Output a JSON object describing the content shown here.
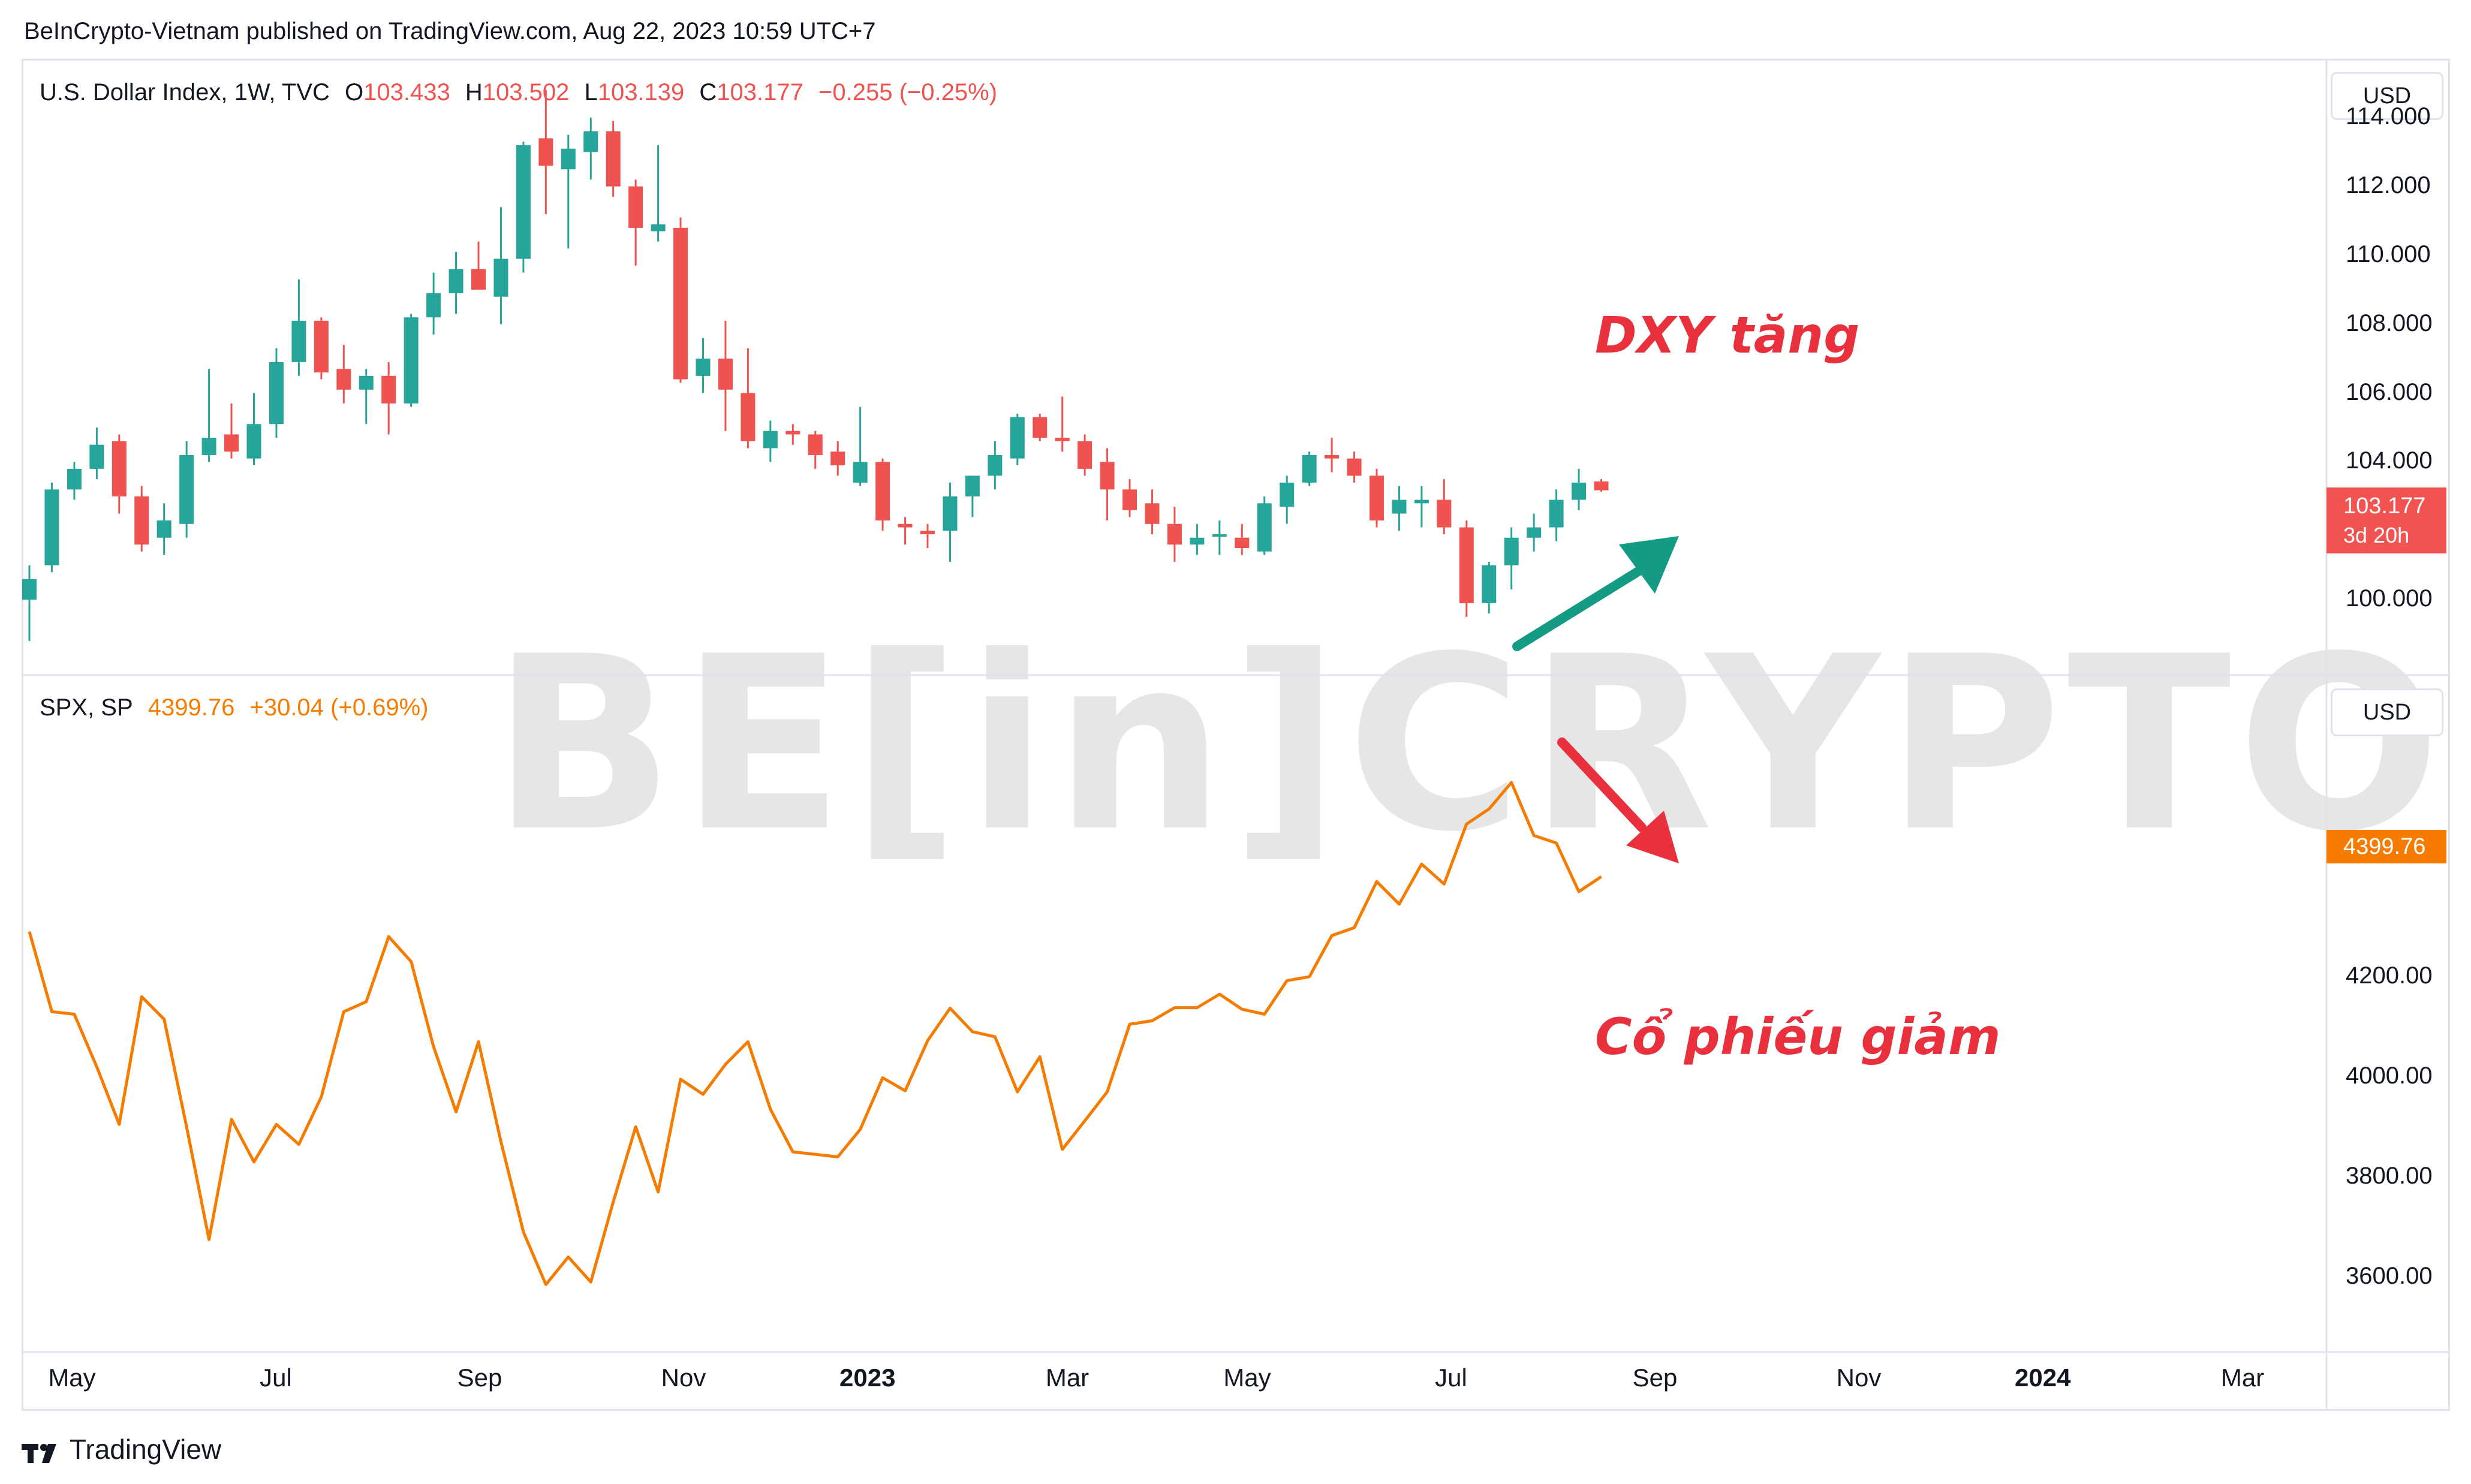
{
  "header": {
    "publisher_line": "BeInCrypto-Vietnam published on TradingView.com, Aug 22, 2023 10:59 UTC+7"
  },
  "footer": {
    "brand": "TradingView"
  },
  "watermark": {
    "text": "BE[in]CRYPTO"
  },
  "top_pane": {
    "legend": {
      "symbol": "U.S. Dollar Index, 1W, TVC",
      "open_label": "O",
      "open": "103.433",
      "high_label": "H",
      "high": "103.502",
      "low_label": "L",
      "low": "103.139",
      "close_label": "C",
      "close": "103.177",
      "change": "−0.255 (−0.25%)"
    },
    "currency": "USD",
    "price_tag": {
      "value": "103.177",
      "countdown": "3d 20h",
      "color": "#f05350"
    },
    "annotation": "DXY tăng",
    "annotation_color": "#e8313d",
    "arrow_color": "#139b83",
    "y_ticks": [
      "114.000",
      "112.000",
      "110.000",
      "108.000",
      "106.000",
      "104.000",
      "100.000"
    ]
  },
  "bottom_pane": {
    "legend": {
      "symbol": "SPX, SP",
      "last": "4399.76",
      "change": "+30.04 (+0.69%)"
    },
    "currency": "USD",
    "price_tag": {
      "value": "4399.76",
      "color": "#f57c00"
    },
    "annotation": "Cổ phiếu giảm",
    "annotation_color": "#e8313d",
    "arrow_color": "#e8313d",
    "y_ticks": [
      "4200.00",
      "4000.00",
      "3800.00",
      "3600.00"
    ]
  },
  "x_ticks": [
    {
      "label": "May",
      "bold": false
    },
    {
      "label": "Jul",
      "bold": false
    },
    {
      "label": "Sep",
      "bold": false
    },
    {
      "label": "Nov",
      "bold": false
    },
    {
      "label": "2023",
      "bold": true
    },
    {
      "label": "Mar",
      "bold": false
    },
    {
      "label": "May",
      "bold": false
    },
    {
      "label": "Jul",
      "bold": false
    },
    {
      "label": "Sep",
      "bold": false
    },
    {
      "label": "Nov",
      "bold": false
    },
    {
      "label": "2024",
      "bold": true
    },
    {
      "label": "Mar",
      "bold": false
    }
  ],
  "chart_data": [
    {
      "type": "candlestick",
      "title": "U.S. Dollar Index, 1W, TVC",
      "up_color": "#26a69a",
      "down_color": "#ef5350",
      "ylim": [
        98.0,
        115.5
      ],
      "x_unit": "week",
      "candles": [
        {
          "o": 100.0,
          "h": 101.0,
          "l": 98.8,
          "c": 100.6
        },
        {
          "o": 101.0,
          "h": 103.4,
          "l": 100.8,
          "c": 103.2
        },
        {
          "o": 103.2,
          "h": 104.0,
          "l": 102.9,
          "c": 103.8
        },
        {
          "o": 103.8,
          "h": 105.0,
          "l": 103.5,
          "c": 104.5
        },
        {
          "o": 104.6,
          "h": 104.8,
          "l": 102.5,
          "c": 103.0
        },
        {
          "o": 103.0,
          "h": 103.3,
          "l": 101.4,
          "c": 101.6
        },
        {
          "o": 101.8,
          "h": 102.8,
          "l": 101.3,
          "c": 102.3
        },
        {
          "o": 102.2,
          "h": 104.6,
          "l": 101.8,
          "c": 104.2
        },
        {
          "o": 104.2,
          "h": 106.7,
          "l": 104.0,
          "c": 104.7
        },
        {
          "o": 104.8,
          "h": 105.7,
          "l": 104.1,
          "c": 104.3
        },
        {
          "o": 104.1,
          "h": 106.0,
          "l": 103.9,
          "c": 105.1
        },
        {
          "o": 105.1,
          "h": 107.3,
          "l": 104.7,
          "c": 106.9
        },
        {
          "o": 106.9,
          "h": 109.3,
          "l": 106.5,
          "c": 108.1
        },
        {
          "o": 108.1,
          "h": 108.2,
          "l": 106.4,
          "c": 106.6
        },
        {
          "o": 106.7,
          "h": 107.4,
          "l": 105.7,
          "c": 106.1
        },
        {
          "o": 106.1,
          "h": 106.7,
          "l": 105.1,
          "c": 106.5
        },
        {
          "o": 106.5,
          "h": 106.9,
          "l": 104.8,
          "c": 105.7
        },
        {
          "o": 105.7,
          "h": 108.3,
          "l": 105.6,
          "c": 108.2
        },
        {
          "o": 108.2,
          "h": 109.5,
          "l": 107.7,
          "c": 108.9
        },
        {
          "o": 108.9,
          "h": 110.1,
          "l": 108.3,
          "c": 109.6
        },
        {
          "o": 109.6,
          "h": 110.4,
          "l": 109.0,
          "c": 109.0
        },
        {
          "o": 108.8,
          "h": 111.4,
          "l": 108.0,
          "c": 109.9
        },
        {
          "o": 109.9,
          "h": 113.3,
          "l": 109.5,
          "c": 113.2
        },
        {
          "o": 113.4,
          "h": 114.8,
          "l": 111.2,
          "c": 112.6
        },
        {
          "o": 112.5,
          "h": 113.5,
          "l": 110.2,
          "c": 113.1
        },
        {
          "o": 113.0,
          "h": 114.0,
          "l": 112.2,
          "c": 113.6
        },
        {
          "o": 113.6,
          "h": 113.9,
          "l": 111.7,
          "c": 112.0
        },
        {
          "o": 112.0,
          "h": 112.2,
          "l": 109.7,
          "c": 110.8
        },
        {
          "o": 110.7,
          "h": 113.2,
          "l": 110.4,
          "c": 110.9
        },
        {
          "o": 110.8,
          "h": 111.1,
          "l": 106.3,
          "c": 106.4
        },
        {
          "o": 106.5,
          "h": 107.6,
          "l": 106.0,
          "c": 107.0
        },
        {
          "o": 107.0,
          "h": 108.1,
          "l": 104.9,
          "c": 106.1
        },
        {
          "o": 106.0,
          "h": 107.3,
          "l": 104.4,
          "c": 104.6
        },
        {
          "o": 104.4,
          "h": 105.2,
          "l": 104.0,
          "c": 104.9
        },
        {
          "o": 104.9,
          "h": 105.1,
          "l": 104.5,
          "c": 104.8
        },
        {
          "o": 104.8,
          "h": 104.9,
          "l": 103.8,
          "c": 104.2
        },
        {
          "o": 104.3,
          "h": 104.6,
          "l": 103.6,
          "c": 103.9
        },
        {
          "o": 103.4,
          "h": 105.6,
          "l": 103.3,
          "c": 104.0
        },
        {
          "o": 104.0,
          "h": 104.1,
          "l": 102.0,
          "c": 102.3
        },
        {
          "o": 102.2,
          "h": 102.4,
          "l": 101.6,
          "c": 102.1
        },
        {
          "o": 102.0,
          "h": 102.2,
          "l": 101.5,
          "c": 101.9
        },
        {
          "o": 102.0,
          "h": 103.4,
          "l": 101.1,
          "c": 103.0
        },
        {
          "o": 103.0,
          "h": 103.6,
          "l": 102.4,
          "c": 103.6
        },
        {
          "o": 103.6,
          "h": 104.6,
          "l": 103.2,
          "c": 104.2
        },
        {
          "o": 104.1,
          "h": 105.4,
          "l": 103.9,
          "c": 105.3
        },
        {
          "o": 105.3,
          "h": 105.4,
          "l": 104.6,
          "c": 104.7
        },
        {
          "o": 104.7,
          "h": 105.9,
          "l": 104.3,
          "c": 104.6
        },
        {
          "o": 104.6,
          "h": 104.8,
          "l": 103.6,
          "c": 103.8
        },
        {
          "o": 104.0,
          "h": 104.4,
          "l": 102.3,
          "c": 103.2
        },
        {
          "o": 103.2,
          "h": 103.5,
          "l": 102.4,
          "c": 102.6
        },
        {
          "o": 102.8,
          "h": 103.2,
          "l": 101.9,
          "c": 102.2
        },
        {
          "o": 102.2,
          "h": 102.7,
          "l": 101.1,
          "c": 101.6
        },
        {
          "o": 101.6,
          "h": 102.2,
          "l": 101.3,
          "c": 101.8
        },
        {
          "o": 101.9,
          "h": 102.3,
          "l": 101.3,
          "c": 101.9
        },
        {
          "o": 101.8,
          "h": 102.2,
          "l": 101.3,
          "c": 101.5
        },
        {
          "o": 101.4,
          "h": 103.0,
          "l": 101.3,
          "c": 102.8
        },
        {
          "o": 102.7,
          "h": 103.6,
          "l": 102.2,
          "c": 103.4
        },
        {
          "o": 103.4,
          "h": 104.3,
          "l": 103.3,
          "c": 104.2
        },
        {
          "o": 104.2,
          "h": 104.7,
          "l": 103.7,
          "c": 104.1
        },
        {
          "o": 104.1,
          "h": 104.3,
          "l": 103.4,
          "c": 103.6
        },
        {
          "o": 103.6,
          "h": 103.8,
          "l": 102.1,
          "c": 102.3
        },
        {
          "o": 102.5,
          "h": 103.3,
          "l": 102.0,
          "c": 102.9
        },
        {
          "o": 102.8,
          "h": 103.3,
          "l": 102.1,
          "c": 102.9
        },
        {
          "o": 102.9,
          "h": 103.5,
          "l": 101.9,
          "c": 102.1
        },
        {
          "o": 102.1,
          "h": 102.3,
          "l": 99.5,
          "c": 99.9
        },
        {
          "o": 99.9,
          "h": 101.1,
          "l": 99.6,
          "c": 101.0
        },
        {
          "o": 101.0,
          "h": 102.1,
          "l": 100.3,
          "c": 101.8
        },
        {
          "o": 101.8,
          "h": 102.5,
          "l": 101.4,
          "c": 102.1
        },
        {
          "o": 102.1,
          "h": 103.2,
          "l": 101.7,
          "c": 102.9
        },
        {
          "o": 102.9,
          "h": 103.8,
          "l": 102.6,
          "c": 103.4
        },
        {
          "o": 103.433,
          "h": 103.502,
          "l": 103.139,
          "c": 103.177
        }
      ]
    },
    {
      "type": "line",
      "title": "SPX, SP",
      "color": "#f57c00",
      "ylim": [
        3450,
        4800
      ],
      "x_unit": "week",
      "series": [
        {
          "name": "SPX",
          "values": [
            4290,
            4130,
            4125,
            4020,
            3905,
            4160,
            4115,
            3900,
            3675,
            3915,
            3830,
            3905,
            3865,
            3960,
            4130,
            4150,
            4280,
            4230,
            4060,
            3930,
            4070,
            3870,
            3690,
            3585,
            3640,
            3590,
            3750,
            3900,
            3770,
            3995,
            3965,
            4025,
            4070,
            3935,
            3850,
            3845,
            3840,
            3895,
            3998,
            3972,
            4072,
            4137,
            4090,
            4080,
            3970,
            4040,
            3855,
            3912,
            3970,
            4105,
            4112,
            4138,
            4138,
            4165,
            4135,
            4125,
            4192,
            4200,
            4282,
            4298,
            4390,
            4345,
            4425,
            4385,
            4505,
            4535,
            4588,
            4482,
            4467,
            4370,
            4399.76
          ]
        }
      ]
    }
  ]
}
